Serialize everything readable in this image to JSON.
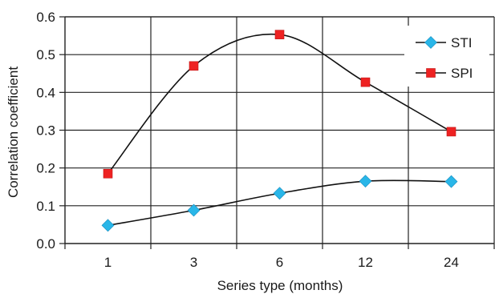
{
  "chart_data": {
    "type": "line",
    "categories": [
      "1",
      "3",
      "6",
      "12",
      "24"
    ],
    "series": [
      {
        "name": "STI",
        "values": [
          0.048,
          0.088,
          0.133,
          0.165,
          0.164
        ],
        "color": "#29b6e8",
        "marker": "diamond"
      },
      {
        "name": "SPI",
        "values": [
          0.185,
          0.47,
          0.553,
          0.427,
          0.296
        ],
        "color": "#ee2222",
        "marker": "square"
      }
    ],
    "xlabel": "Series type (months)",
    "ylabel": "Correlation coefficient",
    "ylim": [
      0.0,
      0.6
    ],
    "yticks": [
      "0.0",
      "0.1",
      "0.2",
      "0.3",
      "0.4",
      "0.5",
      "0.6"
    ],
    "grid": true,
    "smooth": true,
    "legend_position": "top-right"
  }
}
